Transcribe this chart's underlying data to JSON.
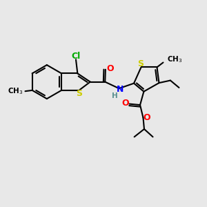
{
  "background_color": "#e8e8e8",
  "atom_colors": {
    "C": "#000000",
    "H": "#5a9090",
    "N": "#0000ff",
    "O": "#ff0000",
    "S": "#cccc00",
    "Cl": "#00aa00"
  },
  "bond_color": "#000000",
  "bond_width": 1.5,
  "figsize": [
    3.0,
    3.0
  ],
  "dpi": 100,
  "font_size": 9.0,
  "font_size_sub": 7.5
}
